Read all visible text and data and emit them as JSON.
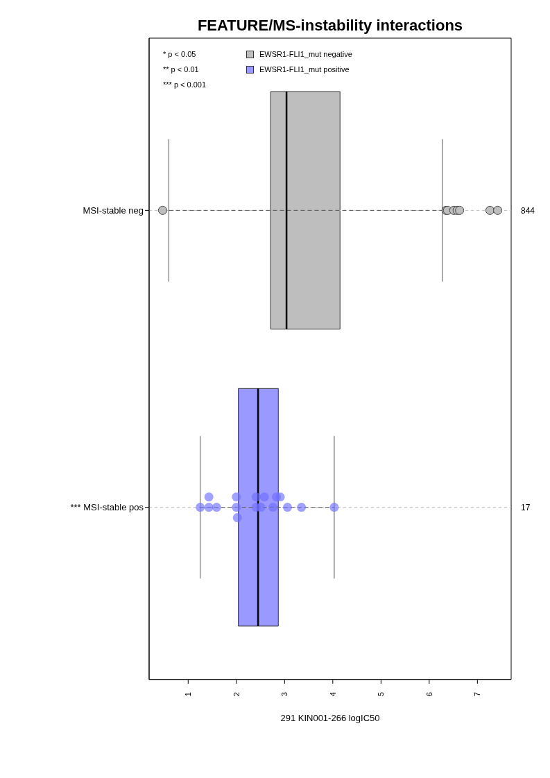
{
  "chart_data": {
    "type": "box",
    "orientation": "horizontal",
    "title": "FEATURE/MS-instability interactions",
    "xlabel": "291 KIN001-266 logIC50",
    "categories": [
      "MSI-stable neg",
      "*** MSI-stable pos"
    ],
    "xlim": [
      0.19,
      7.7
    ],
    "xticks": [
      1,
      2,
      3,
      4,
      5,
      6,
      7
    ],
    "grid": "y",
    "legend": "top left",
    "annotations": [
      "* p < 0.05",
      "** p < 0.01",
      "*** p < 0.001",
      "844",
      "17"
    ],
    "series": [
      {
        "name": "EWSR1-FLI1_mut negative",
        "color": "#bebebe",
        "boxes": [
          {
            "low": 0.6,
            "q1": 2.71,
            "median": 3.04,
            "q3": 4.15,
            "high": 6.27,
            "outliers": [
              0.47,
              6.35,
              6.38,
              6.51,
              6.58,
              6.63,
              7.26,
              7.42
            ]
          },
          null
        ]
      },
      {
        "name": "EWSR1-FLI1_mut positive",
        "color": "#9999ff",
        "boxes": [
          null,
          {
            "low": 1.25,
            "q1": 2.04,
            "median": 2.45,
            "q3": 2.87,
            "high": 4.03
          }
        ]
      },
      {
        "type": "scatter",
        "color": "#6f6fff",
        "x": [
          "*** MSI-stable pos",
          "*** MSI-stable pos",
          "*** MSI-stable pos",
          "*** MSI-stable pos",
          "*** MSI-stable pos",
          "*** MSI-stable pos",
          "*** MSI-stable pos",
          "*** MSI-stable pos",
          "*** MSI-stable pos",
          "*** MSI-stable pos",
          "*** MSI-stable pos",
          "*** MSI-stable pos",
          "*** MSI-stable pos",
          "*** MSI-stable pos",
          "*** MSI-stable pos",
          "*** MSI-stable pos",
          "*** MSI-stable pos"
        ],
        "values": [
          1.25,
          1.43,
          1.43,
          1.59,
          2.0,
          2.0,
          2.02,
          2.41,
          2.41,
          2.51,
          2.58,
          2.76,
          2.83,
          2.91,
          3.06,
          3.35,
          4.03
        ]
      }
    ]
  }
}
